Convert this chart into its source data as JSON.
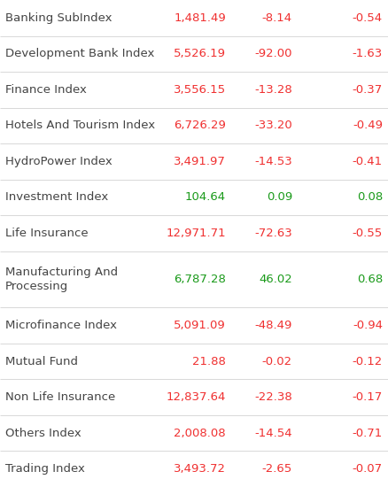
{
  "rows": [
    {
      "sector": "Banking SubIndex",
      "value": "1,481.49",
      "change": "-8.14",
      "pct": "-0.54",
      "color": "red"
    },
    {
      "sector": "Development Bank Index",
      "value": "5,526.19",
      "change": "-92.00",
      "pct": "-1.63",
      "color": "red"
    },
    {
      "sector": "Finance Index",
      "value": "3,556.15",
      "change": "-13.28",
      "pct": "-0.37",
      "color": "red"
    },
    {
      "sector": "Hotels And Tourism Index",
      "value": "6,726.29",
      "change": "-33.20",
      "pct": "-0.49",
      "color": "red"
    },
    {
      "sector": "HydroPower Index",
      "value": "3,491.97",
      "change": "-14.53",
      "pct": "-0.41",
      "color": "red"
    },
    {
      "sector": "Investment Index",
      "value": "104.64",
      "change": "0.09",
      "pct": "0.08",
      "color": "green"
    },
    {
      "sector": "Life Insurance",
      "value": "12,971.71",
      "change": "-72.63",
      "pct": "-0.55",
      "color": "red"
    },
    {
      "sector": "Manufacturing And\nProcessing",
      "value": "6,787.28",
      "change": "46.02",
      "pct": "0.68",
      "color": "green"
    },
    {
      "sector": "Microfinance Index",
      "value": "5,091.09",
      "change": "-48.49",
      "pct": "-0.94",
      "color": "red"
    },
    {
      "sector": "Mutual Fund",
      "value": "21.88",
      "change": "-0.02",
      "pct": "-0.12",
      "color": "red"
    },
    {
      "sector": "Non Life Insurance",
      "value": "12,837.64",
      "change": "-22.38",
      "pct": "-0.17",
      "color": "red"
    },
    {
      "sector": "Others Index",
      "value": "2,008.08",
      "change": "-14.54",
      "pct": "-0.71",
      "color": "red"
    },
    {
      "sector": "Trading Index",
      "value": "3,493.72",
      "change": "-2.65",
      "pct": "-0.07",
      "color": "red"
    }
  ],
  "bg_color": "#ffffff",
  "divider_color": "#d8d8d8",
  "sector_color": "#444444",
  "red": "#f03030",
  "green": "#1a9a1a",
  "font_size": 9.5
}
